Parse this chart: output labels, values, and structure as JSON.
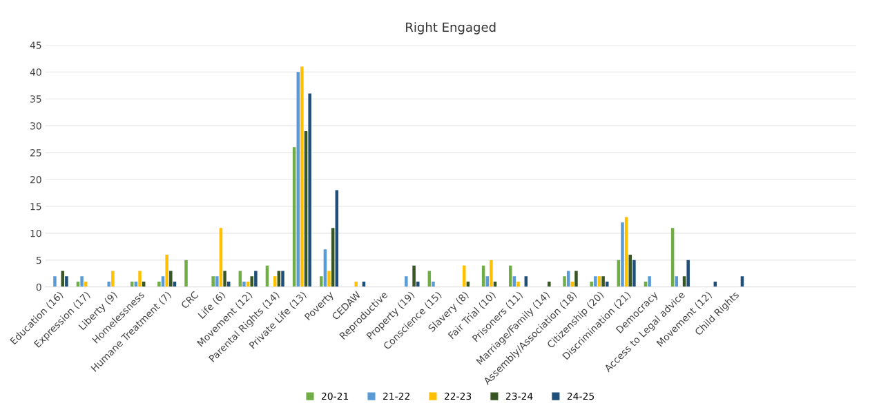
{
  "chart_data": {
    "type": "bar",
    "title": "Right Engaged",
    "categories": [
      "Education (16)",
      "Expression (17)",
      "Liberty (9)",
      "Homelessness",
      "Humane Treatment (7)",
      "CRC",
      "Life (6)",
      "Movement (12)",
      "Parental Rights (14)",
      "Private Life (13)",
      "Poverty",
      "CEDAW",
      "Reproductive",
      "Property (19)",
      "Conscience (15)",
      "Slavery (8)",
      "Fair Trial (10)",
      "Prisoners (11)",
      "Marriage/Family (14)",
      "Assembly/Association (18)",
      "Citizenship (20)",
      "Discrimination (21)",
      "Democracy",
      "Access to Legal advice",
      "Movement (12)",
      "Child Rights",
      null,
      null,
      null,
      null
    ],
    "series": [
      {
        "name": "20-21",
        "color": "#70ad47",
        "values": [
          0,
          1,
          0,
          1,
          1,
          5,
          2,
          3,
          4,
          26,
          2,
          0,
          0,
          0,
          3,
          0,
          4,
          4,
          0,
          2,
          1,
          5,
          1,
          11,
          0,
          0,
          null,
          null,
          null,
          null
        ]
      },
      {
        "name": "21-22",
        "color": "#5b9bd5",
        "values": [
          2,
          2,
          1,
          1,
          2,
          0,
          2,
          1,
          0,
          40,
          7,
          0,
          0,
          2,
          1,
          0,
          2,
          2,
          0,
          3,
          2,
          12,
          2,
          2,
          0,
          0,
          null,
          null,
          null,
          null
        ]
      },
      {
        "name": "22-23",
        "color": "#ffc000",
        "values": [
          0,
          1,
          3,
          3,
          6,
          0,
          11,
          1,
          2,
          41,
          3,
          1,
          0,
          0,
          0,
          4,
          5,
          1,
          0,
          1,
          2,
          13,
          0,
          0,
          0,
          0,
          null,
          null,
          null,
          null
        ]
      },
      {
        "name": "23-24",
        "color": "#375623",
        "values": [
          3,
          0,
          0,
          1,
          3,
          0,
          3,
          2,
          3,
          29,
          11,
          0,
          0,
          4,
          0,
          1,
          1,
          0,
          1,
          3,
          2,
          6,
          0,
          2,
          0,
          0,
          null,
          null,
          null,
          null
        ]
      },
      {
        "name": "24-25",
        "color": "#1f4e79",
        "values": [
          2,
          0,
          0,
          0,
          1,
          0,
          1,
          3,
          3,
          36,
          18,
          1,
          0,
          1,
          0,
          0,
          0,
          2,
          0,
          0,
          1,
          5,
          0,
          5,
          1,
          2,
          null,
          null,
          null,
          null
        ]
      }
    ],
    "ylim": [
      0,
      45
    ],
    "yticks": [
      0,
      5,
      10,
      15,
      20,
      25,
      30,
      35,
      40,
      45
    ],
    "grid": "y",
    "legend": "bottom"
  }
}
